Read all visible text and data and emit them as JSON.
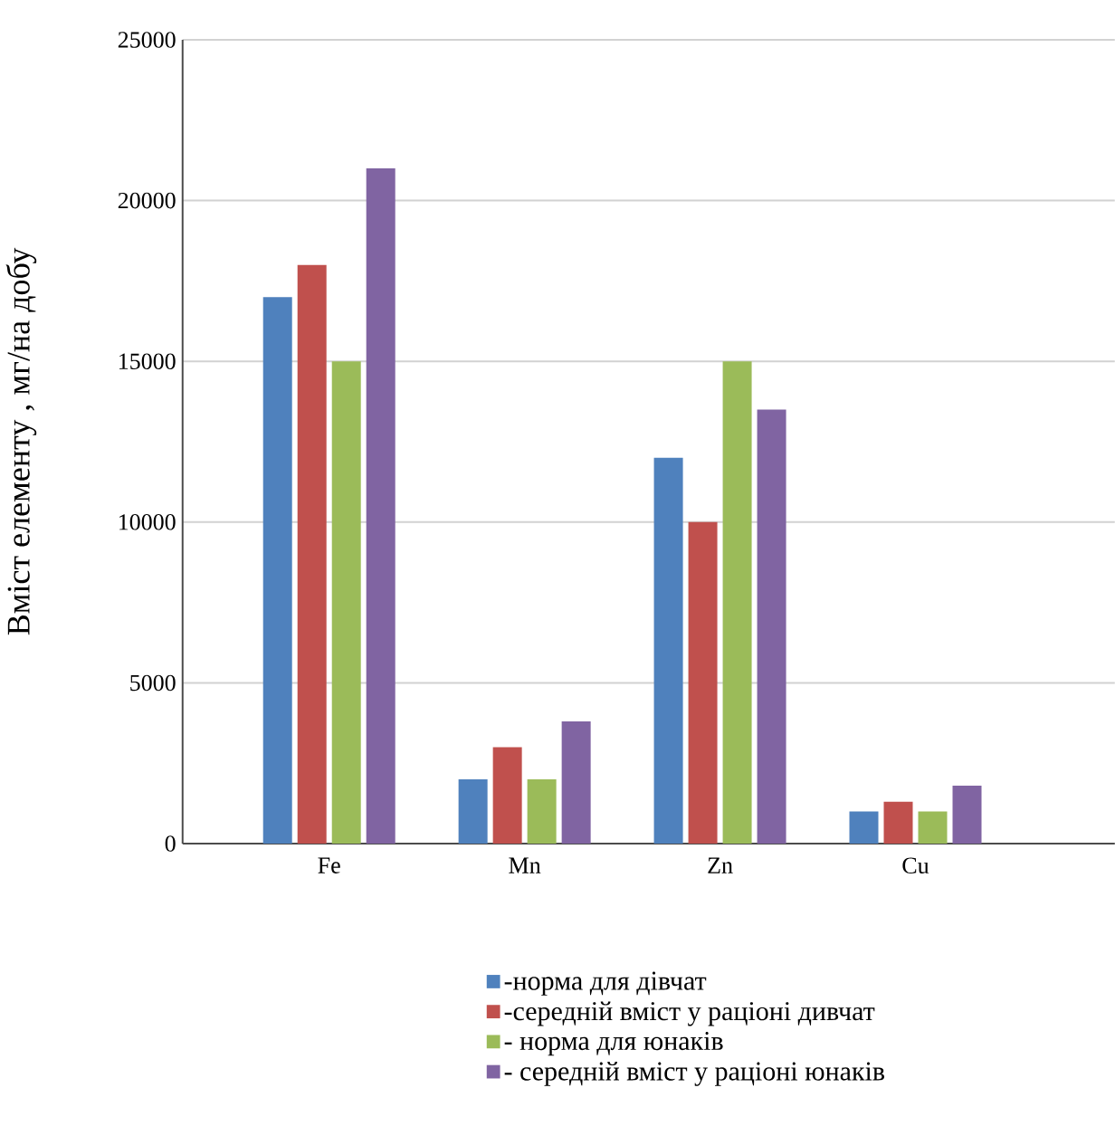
{
  "chart_data": {
    "type": "bar",
    "ylabel": "Вміст елементу , мг/на добу",
    "categories": [
      "Fe",
      "Mn",
      "Zn",
      "Cu"
    ],
    "series": [
      {
        "name": "-норма для дівчат",
        "color": "#4f81bd",
        "values": [
          17000,
          2000,
          12000,
          1000
        ]
      },
      {
        "name": "-середній вміст у раціоні дивчат",
        "color": "#c0504d",
        "values": [
          18000,
          3000,
          10000,
          1300
        ]
      },
      {
        "name": "- норма для юнаків",
        "color": "#9bbb59",
        "values": [
          15000,
          2000,
          15000,
          1000
        ]
      },
      {
        "name": "- середній вміст у раціоні юнаків",
        "color": "#8064a2",
        "values": [
          21000,
          3800,
          13500,
          1800
        ]
      }
    ],
    "ylim": [
      0,
      25000
    ],
    "yticks": [
      0,
      5000,
      10000,
      15000,
      20000,
      25000
    ],
    "grid": "y",
    "legend": "bottom"
  }
}
